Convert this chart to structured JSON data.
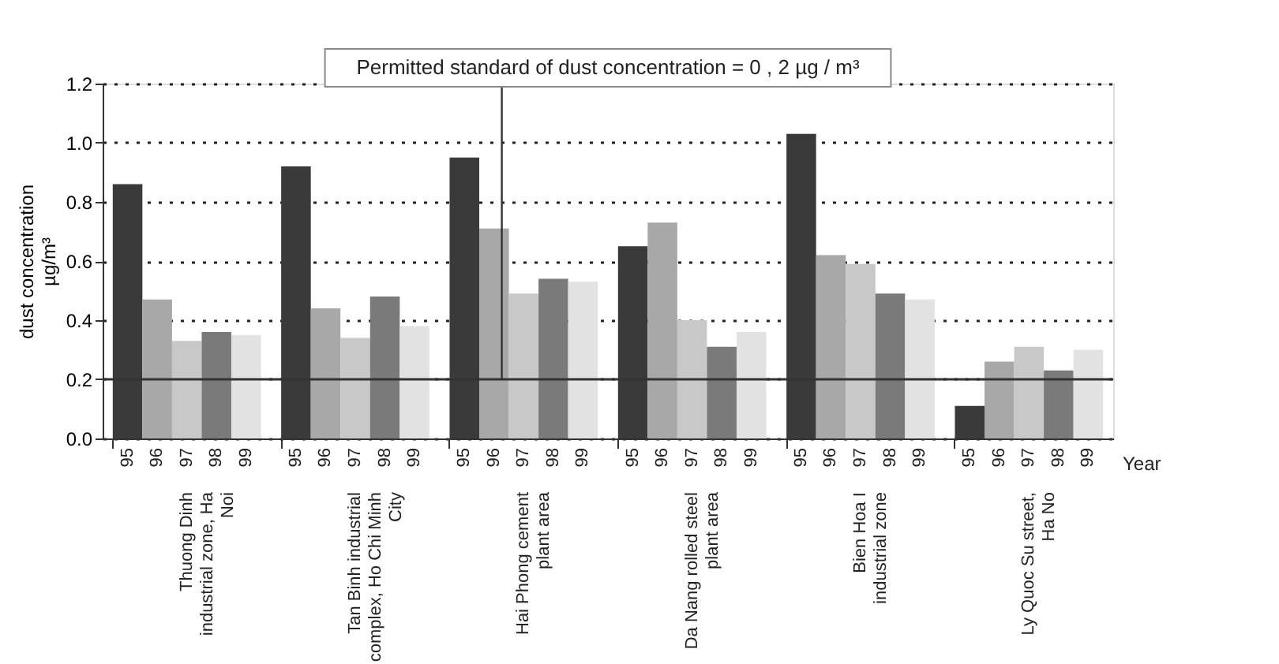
{
  "chart_data": {
    "type": "bar",
    "categories": [
      "Thuong Dinh industrial zone, Ha Noi",
      "Tan Binh industrial complex, Ho Chi Minh City",
      "Hai Phong cement plant area",
      "Da Nang rolled steel plant area",
      "Bien Hoa I industrial zone",
      "Ly Quoc Su street, Ha No"
    ],
    "series": [
      {
        "name": "95",
        "color": "#3a3a3a",
        "values": [
          0.86,
          0.92,
          0.95,
          0.65,
          1.03,
          0.11
        ]
      },
      {
        "name": "96",
        "color": "#a8a8a8",
        "values": [
          0.47,
          0.44,
          0.71,
          0.73,
          0.62,
          0.26
        ]
      },
      {
        "name": "97",
        "color": "#c8c8c8",
        "values": [
          0.33,
          0.34,
          0.49,
          0.4,
          0.59,
          0.31
        ]
      },
      {
        "name": "98",
        "color": "#7a7a7a",
        "values": [
          0.36,
          0.48,
          0.54,
          0.31,
          0.49,
          0.23
        ]
      },
      {
        "name": "99",
        "color": "#e2e2e2",
        "values": [
          0.35,
          0.38,
          0.53,
          0.36,
          0.47,
          0.3
        ]
      }
    ],
    "xlabel": "Year",
    "ylabel": "dust concentration µg/m³",
    "ylim": [
      0,
      1.2
    ],
    "yticks": [
      {
        "value": 0,
        "label": "0.0"
      },
      {
        "value": 0.2,
        "label": "0.2"
      },
      {
        "value": 0.4,
        "label": "0.4"
      },
      {
        "value": 0.6,
        "label": "0.6"
      },
      {
        "value": 0.8,
        "label": "0.8"
      },
      {
        "value": 1.0,
        "label": "1.0"
      },
      {
        "value": 1.2,
        "label": "1.2"
      }
    ],
    "grid": "y",
    "legend": "bottom",
    "ref_lines": [
      {
        "axis": "y",
        "value": 0.2,
        "label": "Permitted standard of dust concentration = 0 , 2 µg / m³",
        "color": "#333333"
      }
    ]
  }
}
